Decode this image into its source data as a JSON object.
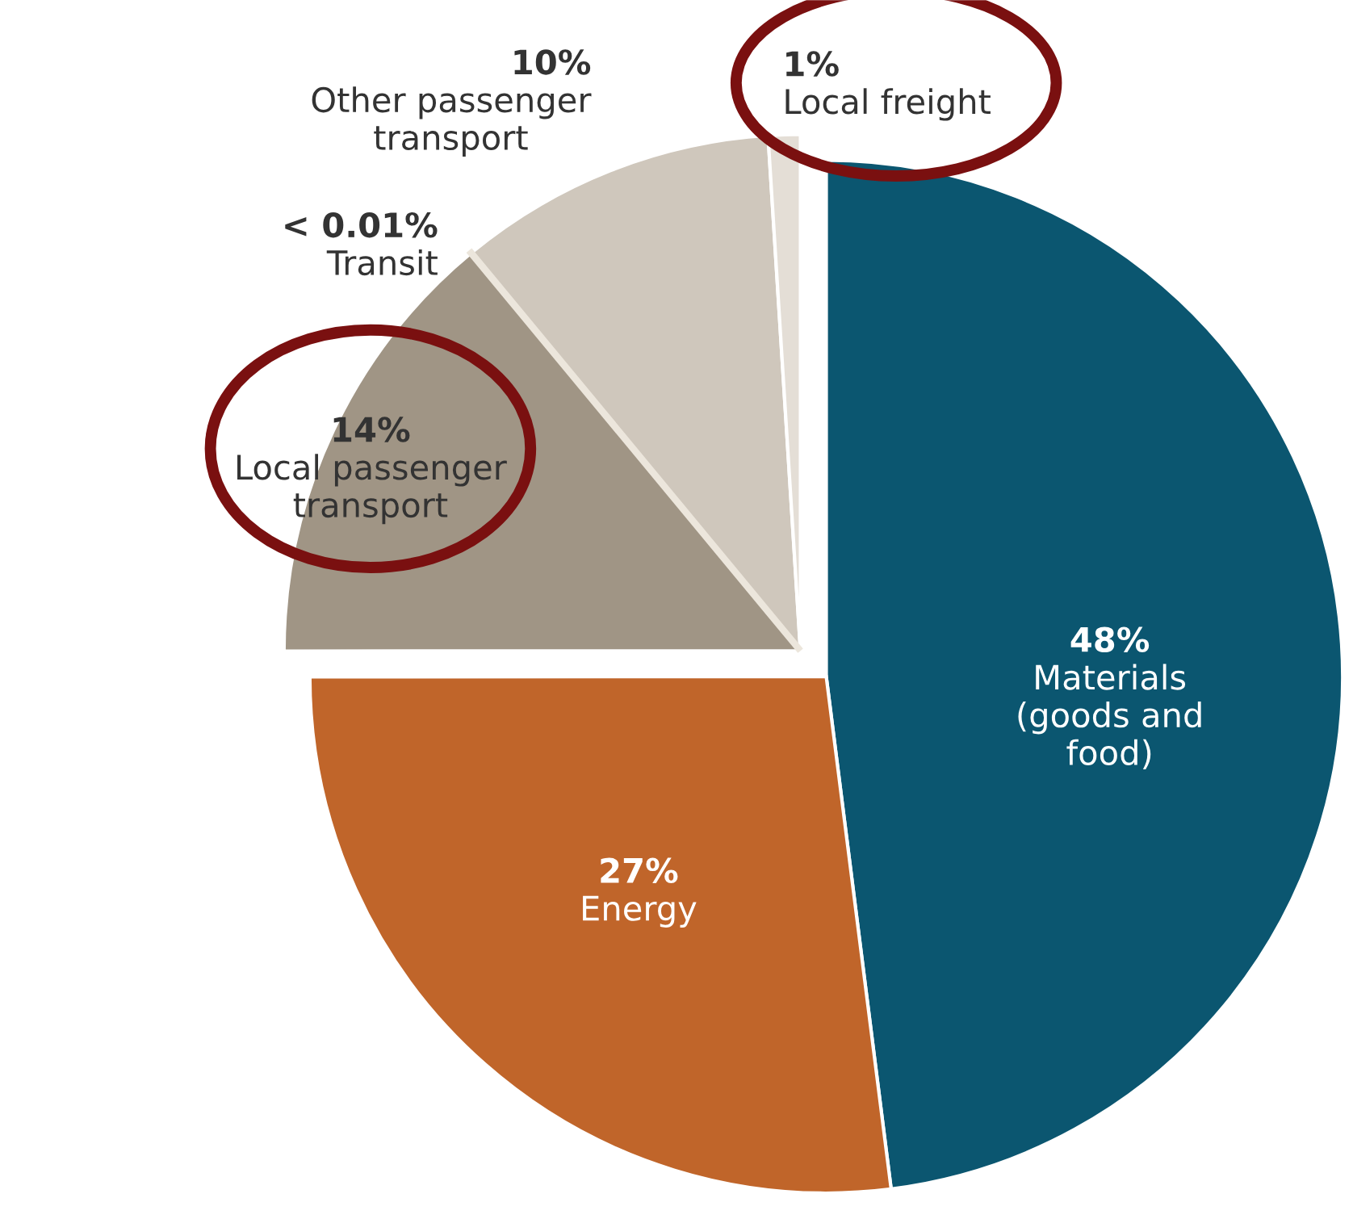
{
  "chart_data": {
    "type": "pie",
    "categories": [
      "Materials (goods and food)",
      "Energy",
      "Local passenger transport",
      "Transit",
      "Other passenger transport",
      "Local freight"
    ],
    "values": [
      48,
      27,
      14,
      0.01,
      10,
      1
    ],
    "value_labels": [
      "48%",
      "27%",
      "14%",
      "< 0.01%",
      "10%",
      "1%"
    ],
    "colors": [
      "#0b5670",
      "#c0652a",
      "#a09585",
      "#ece6dc",
      "#cfc7bc",
      "#e4ded6"
    ]
  }
}
